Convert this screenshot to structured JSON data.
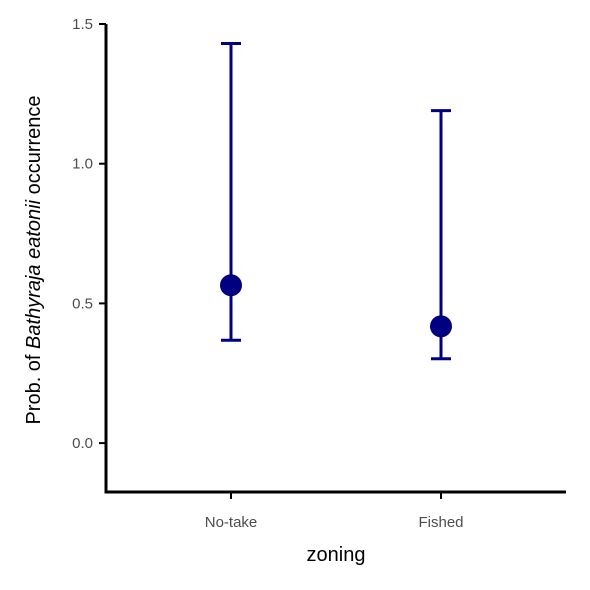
{
  "chart_data": {
    "type": "scatter",
    "title": "",
    "xlabel": "zoning",
    "ylabel": {
      "prefix": "Prob. of ",
      "species": "Bathyraja eatonii",
      "suffix": " occurrence"
    },
    "categories": [
      "No-take",
      "Fished"
    ],
    "series": [
      {
        "values": [
          0.565,
          0.418
        ],
        "lower": [
          0.368,
          0.302
        ],
        "upper": [
          1.43,
          1.19
        ]
      }
    ],
    "ylim": [
      -0.175,
      1.5
    ],
    "yticks": [
      {
        "value": 0.0,
        "label": "0.0"
      },
      {
        "value": 0.5,
        "label": "0.5"
      },
      {
        "value": 1.0,
        "label": "1.0"
      },
      {
        "value": 1.5,
        "label": "1.5"
      }
    ],
    "grid": false,
    "legend": "none",
    "colors": {
      "points": "#000080",
      "axis": "#000000",
      "tick_text": "#4d4d4d"
    }
  }
}
